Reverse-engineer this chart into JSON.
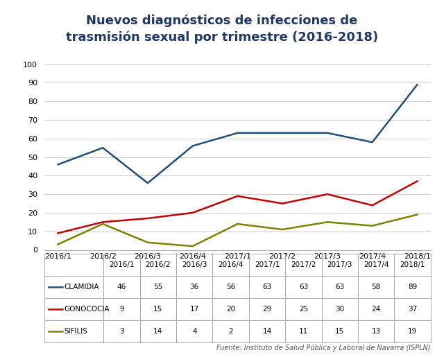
{
  "title_line1": "Nuevos diagnósticos de infecciones de",
  "title_line2": "trasmisión sexual por trimestre (2016-2018)",
  "x_labels": [
    "2016/1",
    "2016/2",
    "2016/3",
    "2016/4",
    "2017/1",
    "2017/2",
    "2017/3",
    "2017/4",
    "2018/1"
  ],
  "clamidia": [
    46,
    55,
    36,
    56,
    63,
    63,
    63,
    58,
    89
  ],
  "gonococia": [
    9,
    15,
    17,
    20,
    29,
    25,
    30,
    24,
    37
  ],
  "sifilis": [
    3,
    14,
    4,
    2,
    14,
    11,
    15,
    13,
    19
  ],
  "clamidia_color": "#1f4e79",
  "gonococia_color": "#c00000",
  "sifilis_color": "#7f7f00",
  "ylim": [
    0,
    100
  ],
  "yticks": [
    0,
    10,
    20,
    30,
    40,
    50,
    60,
    70,
    80,
    90,
    100
  ],
  "source": "Fuente: Instituto de Salud Pública y Laboral de Navarra (ISPLN)",
  "table_row1_label": "CLAMIDIA",
  "table_row2_label": "GONOCOCIA",
  "table_row3_label": "SIFILIS",
  "bg_color": "#ffffff",
  "title_color": "#1f3864",
  "border_color": "#aaaaaa"
}
